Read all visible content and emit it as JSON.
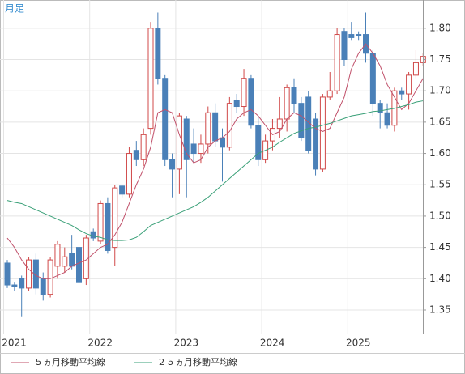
{
  "chart_data": {
    "type": "candlestick",
    "title": "月足",
    "categories": [
      "2021",
      null,
      null,
      null,
      null,
      null,
      null,
      null,
      null,
      null,
      null,
      null,
      "2022",
      null,
      null,
      null,
      null,
      null,
      null,
      null,
      null,
      null,
      null,
      null,
      "2023",
      null,
      null,
      null,
      null,
      null,
      null,
      null,
      null,
      null,
      null,
      null,
      "2024",
      null,
      null,
      null,
      null,
      null,
      null,
      null,
      null,
      null,
      null,
      null,
      "2025",
      null,
      null,
      null,
      null,
      null,
      null,
      null,
      null,
      null,
      null
    ],
    "open": [
      1.425,
      1.39,
      1.4,
      1.385,
      1.43,
      1.4,
      1.375,
      1.42,
      1.42,
      1.44,
      1.45,
      1.4,
      1.475,
      1.46,
      1.52,
      1.45,
      1.548,
      1.535,
      1.605,
      1.59,
      1.64,
      1.8,
      1.72,
      1.59,
      1.575,
      1.655,
      1.615,
      1.6,
      1.615,
      1.665,
      1.625,
      1.61,
      1.685,
      1.675,
      1.72,
      1.645,
      1.59,
      1.62,
      1.64,
      1.655,
      1.705,
      1.68,
      1.69,
      1.655,
      1.575,
      1.69,
      1.7,
      1.795,
      1.79,
      1.79,
      1.79,
      1.76,
      1.68,
      1.665,
      1.645,
      1.7,
      1.695,
      1.725,
      1.745
    ],
    "high": [
      1.43,
      1.395,
      1.405,
      1.435,
      1.44,
      1.41,
      1.435,
      1.46,
      1.45,
      1.47,
      1.46,
      1.47,
      1.48,
      1.525,
      1.53,
      1.55,
      1.55,
      1.61,
      1.62,
      1.64,
      1.81,
      1.825,
      1.725,
      1.6,
      1.665,
      1.66,
      1.64,
      1.63,
      1.675,
      1.68,
      1.64,
      1.69,
      1.695,
      1.735,
      1.725,
      1.66,
      1.63,
      1.655,
      1.69,
      1.71,
      1.72,
      1.69,
      1.7,
      1.665,
      1.695,
      1.73,
      1.8,
      1.8,
      1.81,
      1.795,
      1.825,
      1.765,
      1.685,
      1.68,
      1.705,
      1.705,
      1.73,
      1.765,
      1.76
    ],
    "low": [
      1.385,
      1.38,
      1.34,
      1.38,
      1.375,
      1.365,
      1.37,
      1.4,
      1.41,
      1.415,
      1.39,
      1.39,
      1.46,
      1.455,
      1.44,
      1.42,
      1.53,
      1.53,
      1.58,
      1.58,
      1.63,
      1.71,
      1.58,
      1.53,
      1.535,
      1.53,
      1.585,
      1.585,
      1.6,
      1.61,
      1.555,
      1.605,
      1.665,
      1.66,
      1.64,
      1.58,
      1.585,
      1.605,
      1.625,
      1.635,
      1.665,
      1.62,
      1.6,
      1.565,
      1.57,
      1.685,
      1.695,
      1.74,
      1.78,
      1.78,
      1.745,
      1.66,
      1.64,
      1.64,
      1.635,
      1.685,
      1.67,
      1.72,
      1.74
    ],
    "close": [
      1.39,
      1.388,
      1.385,
      1.43,
      1.385,
      1.375,
      1.43,
      1.455,
      1.435,
      1.42,
      1.395,
      1.465,
      1.465,
      1.52,
      1.445,
      1.545,
      1.535,
      1.6,
      1.59,
      1.63,
      1.8,
      1.72,
      1.59,
      1.575,
      1.66,
      1.59,
      1.6,
      1.615,
      1.665,
      1.62,
      1.61,
      1.68,
      1.675,
      1.72,
      1.645,
      1.59,
      1.62,
      1.64,
      1.655,
      1.705,
      1.68,
      1.625,
      1.605,
      1.575,
      1.69,
      1.7,
      1.79,
      1.75,
      1.785,
      1.788,
      1.76,
      1.68,
      1.665,
      1.645,
      1.7,
      1.695,
      1.725,
      1.745,
      1.755
    ],
    "up_color": "#d04848",
    "down_color": "#4a80b8",
    "series": [
      {
        "name": "５ヵ月移動平均線",
        "color": "#c0506a",
        "values": [
          1.465,
          1.45,
          1.43,
          1.415,
          1.405,
          1.4,
          1.4,
          1.405,
          1.41,
          1.42,
          1.425,
          1.43,
          1.44,
          1.45,
          1.455,
          1.47,
          1.49,
          1.52,
          1.55,
          1.575,
          1.61,
          1.665,
          1.67,
          1.665,
          1.63,
          1.6,
          1.585,
          1.59,
          1.61,
          1.62,
          1.625,
          1.635,
          1.655,
          1.665,
          1.67,
          1.66,
          1.645,
          1.63,
          1.635,
          1.655,
          1.665,
          1.66,
          1.65,
          1.64,
          1.635,
          1.64,
          1.665,
          1.69,
          1.735,
          1.76,
          1.775,
          1.76,
          1.74,
          1.71,
          1.69,
          1.67,
          1.68,
          1.7,
          1.72
        ]
      },
      {
        "name": "２５ヵ月移動平均線",
        "color": "#3aa078",
        "values": [
          1.525,
          1.522,
          1.52,
          1.515,
          1.51,
          1.505,
          1.5,
          1.495,
          1.49,
          1.485,
          1.478,
          1.472,
          1.468,
          1.466,
          1.462,
          1.461,
          1.461,
          1.462,
          1.466,
          1.475,
          1.485,
          1.49,
          1.495,
          1.5,
          1.505,
          1.51,
          1.515,
          1.522,
          1.53,
          1.54,
          1.55,
          1.56,
          1.57,
          1.58,
          1.59,
          1.6,
          1.605,
          1.61,
          1.618,
          1.625,
          1.632,
          1.636,
          1.64,
          1.642,
          1.645,
          1.648,
          1.652,
          1.656,
          1.66,
          1.662,
          1.664,
          1.667,
          1.668,
          1.67,
          1.672,
          1.675,
          1.678,
          1.682,
          1.684
        ]
      }
    ],
    "ylim": [
      1.3125,
      1.845
    ],
    "yticks": [
      1.35,
      {
        "value": 1.4,
        "label": "1.40"
      },
      1.45,
      {
        "value": 1.5,
        "label": "1.50"
      },
      1.55,
      {
        "value": 1.6,
        "label": "1.60"
      },
      1.65,
      {
        "value": 1.7,
        "label": "1.70"
      },
      1.75,
      {
        "value": 1.8,
        "label": "1.80"
      }
    ],
    "grid": true
  }
}
